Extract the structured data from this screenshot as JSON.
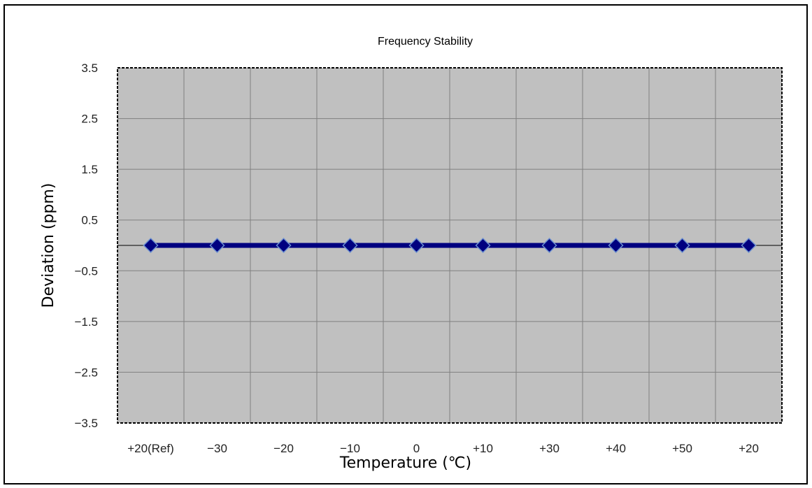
{
  "chart_data": {
    "type": "line",
    "title": "Frequency Stability",
    "xlabel": "Temperature (℃)",
    "ylabel": "Deviation (ppm)",
    "categories": [
      "+20(Ref)",
      "−30",
      "−20",
      "−10",
      "0",
      "+10",
      "+30",
      "+40",
      "+50",
      "+20"
    ],
    "series": [
      {
        "values": [
          0,
          0,
          0,
          0,
          0,
          0,
          0,
          0,
          0,
          0
        ]
      }
    ],
    "ylim": [
      -3.5,
      3.5
    ],
    "yticks": [
      3.5,
      2.5,
      1.5,
      0.5,
      -0.5,
      -1.5,
      -2.5,
      -3.5
    ],
    "ytick_labels": [
      "3.5",
      "2.5",
      "1.5",
      "0.5",
      "−0.5",
      "−1.5",
      "−2.5",
      "−3.5"
    ],
    "grid": true,
    "legend": "none",
    "colors": {
      "plot_background": "#c0c0c0",
      "grid": "#808080",
      "series_line": "#000080",
      "marker_fill": "#000080",
      "marker_edge": "#6a8fd0",
      "zero_line": "#000000"
    }
  }
}
